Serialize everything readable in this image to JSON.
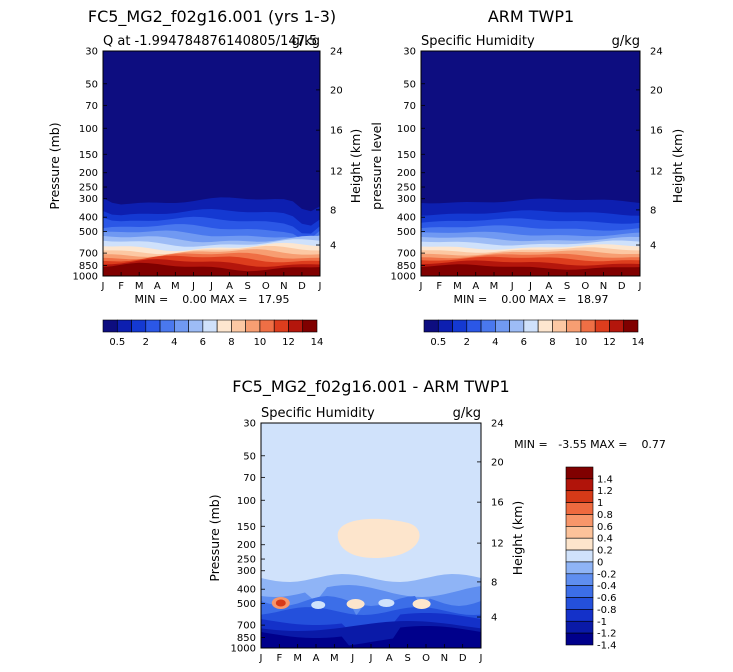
{
  "colors": {
    "seq": [
      "#0d0d80",
      "#0d1fb0",
      "#1439d2",
      "#2b57e6",
      "#4a78ee",
      "#7099f2",
      "#9dbcf6",
      "#cfe1fb",
      "#fde6cf",
      "#fcc8a3",
      "#f79e72",
      "#ef6f45",
      "#dd3d1d",
      "#b4160c",
      "#800000"
    ],
    "diff": [
      "#00008b",
      "#0a1aa8",
      "#1431c9",
      "#2450dc",
      "#3c6ee8",
      "#5f8ef0",
      "#8fb4f6",
      "#d0e2fb",
      "#fde5cc",
      "#fcc29a",
      "#f7966a",
      "#ee6a3f",
      "#d63a18",
      "#b1140a",
      "#800000"
    ],
    "frame": "#000000"
  },
  "chart_data": [
    {
      "type": "heatmap",
      "panel": "top-left",
      "title": "FC5_MG2_f02g16.001 (yrs 1-3)",
      "subtitle_left": "Q at -1.994784876140805/147.5",
      "subtitle_right": "g/kg",
      "ylabel": "Pressure (mb)",
      "ylabel_right": "Height (km)",
      "x_ticks": [
        "J",
        "F",
        "M",
        "A",
        "M",
        "J",
        "J",
        "A",
        "S",
        "O",
        "N",
        "D",
        "J"
      ],
      "y_ticks": [
        "30",
        "50",
        "70",
        "100",
        "150",
        "200",
        "250",
        "300",
        "400",
        "500",
        "700",
        "850",
        "1000"
      ],
      "y_right_ticks": [
        "24",
        "20",
        "16",
        "12",
        "8",
        "4"
      ],
      "min_max_text": "MIN =    0.00 MAX =   17.95",
      "legend": [
        "0.5",
        "2",
        "4",
        "6",
        "8",
        "10",
        "12",
        "14"
      ],
      "min": 0.0,
      "max": 17.95
    },
    {
      "type": "heatmap",
      "panel": "top-right",
      "title": "ARM TWP1",
      "subtitle_left": "Specific Humidity",
      "subtitle_right": "g/kg",
      "ylabel": "pressure level",
      "ylabel_right": "Height (km)",
      "x_ticks": [
        "J",
        "F",
        "M",
        "A",
        "M",
        "J",
        "J",
        "A",
        "S",
        "O",
        "N",
        "D",
        "J"
      ],
      "y_ticks": [
        "30",
        "50",
        "70",
        "100",
        "150",
        "200",
        "250",
        "300",
        "400",
        "500",
        "700",
        "850",
        "1000"
      ],
      "y_right_ticks": [
        "24",
        "20",
        "16",
        "12",
        "8",
        "4"
      ],
      "min_max_text": "MIN =    0.00 MAX =   18.97",
      "legend": [
        "0.5",
        "2",
        "4",
        "6",
        "8",
        "10",
        "12",
        "14"
      ],
      "min": 0.0,
      "max": 18.97
    },
    {
      "type": "heatmap",
      "panel": "bottom",
      "title": "FC5_MG2_f02g16.001 - ARM TWP1",
      "subtitle_left": "Specific Humidity",
      "subtitle_right": "g/kg",
      "ylabel": "Pressure (mb)",
      "ylabel_right": "Height (km)",
      "x_ticks": [
        "J",
        "F",
        "M",
        "A",
        "M",
        "J",
        "J",
        "A",
        "S",
        "O",
        "N",
        "D",
        "J"
      ],
      "y_ticks": [
        "30",
        "50",
        "70",
        "100",
        "150",
        "200",
        "250",
        "300",
        "400",
        "500",
        "700",
        "850",
        "1000"
      ],
      "y_right_ticks": [
        "24",
        "20",
        "16",
        "12",
        "8",
        "4"
      ],
      "min_max_text": "MIN =   -3.55 MAX =    0.77",
      "legend": [
        "1.4",
        "1.2",
        "1",
        "0.8",
        "0.6",
        "0.4",
        "0.2",
        "0",
        "-0.2",
        "-0.4",
        "-0.6",
        "-0.8",
        "-1",
        "-1.2",
        "-1.4"
      ],
      "min": -3.55,
      "max": 0.77
    }
  ]
}
